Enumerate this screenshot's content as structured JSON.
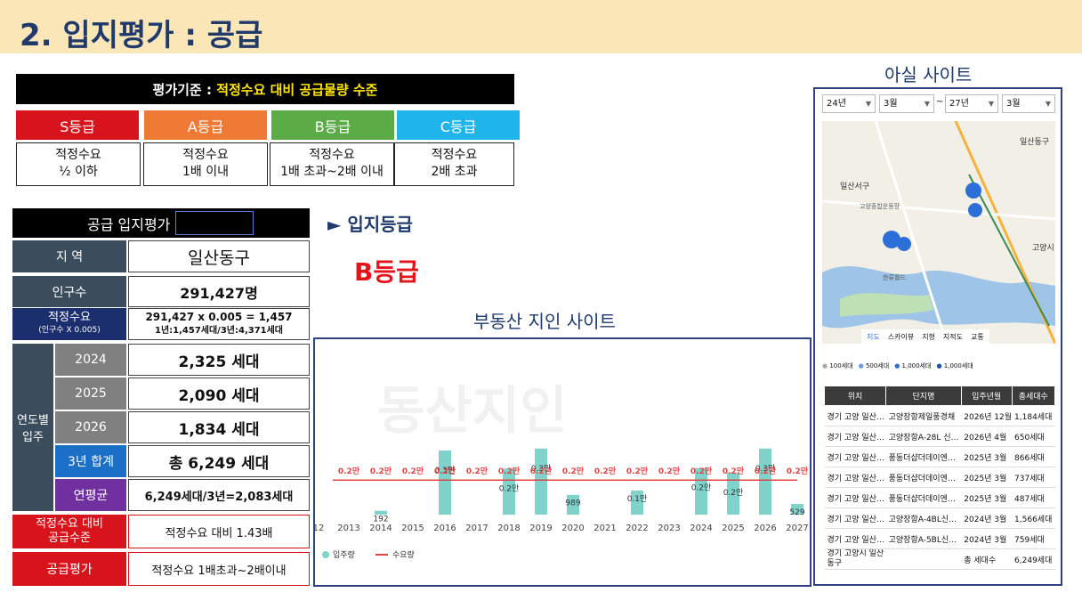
{
  "header": {
    "title": "2. 입지평가 : 공급"
  },
  "criteria": {
    "label": "평가기준 :",
    "highlight": "적정수요 대비 공급물량 수준",
    "grades": [
      {
        "name": "S등급",
        "color": "#d7141b",
        "desc1": "적정수요",
        "desc2": "½ 이하"
      },
      {
        "name": "A등급",
        "color": "#ef7a35",
        "desc1": "적정수요",
        "desc2": "1배 이내"
      },
      {
        "name": "B등급",
        "color": "#5bab47",
        "desc1": "적정수요",
        "desc2": "1배 초과~2배 이내"
      },
      {
        "name": "C등급",
        "color": "#1fb5ea",
        "desc1": "적정수요",
        "desc2": "2배 초과"
      }
    ]
  },
  "panel": {
    "title": "공급 입지평가",
    "region_label": "지 역",
    "region_value": "일산동구",
    "pop_label": "인구수",
    "pop_value": "291,427명",
    "demand_label": "적정수요",
    "demand_sub": "(인구수 X 0.005)",
    "demand_value1": "291,427 x 0.005 = 1,457",
    "demand_value2": "1년:1,457세대/3년:4,371세대",
    "yearly_label": "연도별\n입주",
    "years": [
      {
        "year": "2024",
        "value": "2,325 세대"
      },
      {
        "year": "2025",
        "value": "2,090 세대"
      },
      {
        "year": "2026",
        "value": "1,834 세대"
      }
    ],
    "total_label": "3년 합계",
    "total_value": "총 6,249 세대",
    "avg_label": "연평균",
    "avg_value": "6,249세대/3년=2,083세대",
    "level_label": "적정수요 대비\n공급수준",
    "level_value": "적정수요 대비 1.43배",
    "eval_label": "공급평가",
    "eval_value": "적정수요 1배초과~2배이내"
  },
  "grade_result": {
    "arrow_title": "► 입지등급",
    "grade": "B등급"
  },
  "chart_caption": "부동산 지인 사이트",
  "chart_data": {
    "type": "bar",
    "categories": [
      "12",
      "2013",
      "2014",
      "2015",
      "2016",
      "2017",
      "2018",
      "2019",
      "2020",
      "2021",
      "2022",
      "2023",
      "2024",
      "2025",
      "2026",
      "2027"
    ],
    "series": [
      {
        "name": "입주량",
        "values": [
          null,
          null,
          192,
          null,
          3200,
          null,
          2300,
          3300,
          989,
          null,
          1200,
          null,
          2325,
          2090,
          3300,
          529
        ],
        "labels": [
          "",
          "",
          "192",
          "",
          "0.3만",
          "",
          "0.2만",
          "0.3만",
          "989",
          "",
          "0.1만",
          "",
          "0.2만",
          "0.2만",
          "0.3만",
          "529"
        ]
      },
      {
        "name": "수요량",
        "values": [
          1457,
          1457,
          1457,
          1457,
          1457,
          1457,
          1457,
          1457,
          1457,
          1457,
          1457,
          1457,
          1457,
          1457,
          1457,
          1457
        ],
        "labels": [
          "0.2만",
          "0.2만",
          "0.2만",
          "0.2만",
          "0.2만",
          "0.2만",
          "0.2만",
          "0.2만",
          "0.2만",
          "0.2만",
          "0.2만",
          "0.2만",
          "0.2만",
          "0.2만",
          "0.2만",
          "0.2만"
        ]
      }
    ],
    "colors": {
      "bar": "#7fd3ca",
      "line": "#e04545"
    }
  },
  "site": {
    "caption": "아실 사이트",
    "filters": [
      "24년",
      "3월",
      "27년",
      "3월"
    ],
    "map_tabs": [
      "지도",
      "스카이뷰",
      "지형",
      "지적도",
      "교통"
    ],
    "map_labels": [
      "일산동구",
      "일산서구",
      "고양시",
      "고양종합운동장",
      "한류월드"
    ],
    "legend": [
      "100세대",
      "500세대",
      "1,000세대",
      "1,000세대"
    ],
    "table_headers": [
      "위치",
      "단지명",
      "입주년월",
      "총세대수"
    ],
    "rows": [
      [
        "경기 고양 일산…",
        "고양장항제일풍경채",
        "2026년 12월",
        "1,184세대"
      ],
      [
        "경기 고양 일산…",
        "고양장항A-28L 신…",
        "2026년 4월",
        "650세대"
      ],
      [
        "경기 고양 일산…",
        "풍동더샵더데이엔…",
        "2025년 3월",
        "866세대"
      ],
      [
        "경기 고양 일산…",
        "풍동더샵더데이엔…",
        "2025년 3월",
        "737세대"
      ],
      [
        "경기 고양 일산…",
        "풍동더샵더데이엔…",
        "2025년 3월",
        "487세대"
      ],
      [
        "경기 고양 일산…",
        "고양장항A-4BL신…",
        "2024년 3월",
        "1,566세대"
      ],
      [
        "경기 고양 일산…",
        "고양장항A-5BL신…",
        "2024년 3월",
        "759세대"
      ]
    ],
    "total_row": [
      "경기 고양시 일산동구",
      "총 세대수",
      "6,249세대"
    ]
  }
}
